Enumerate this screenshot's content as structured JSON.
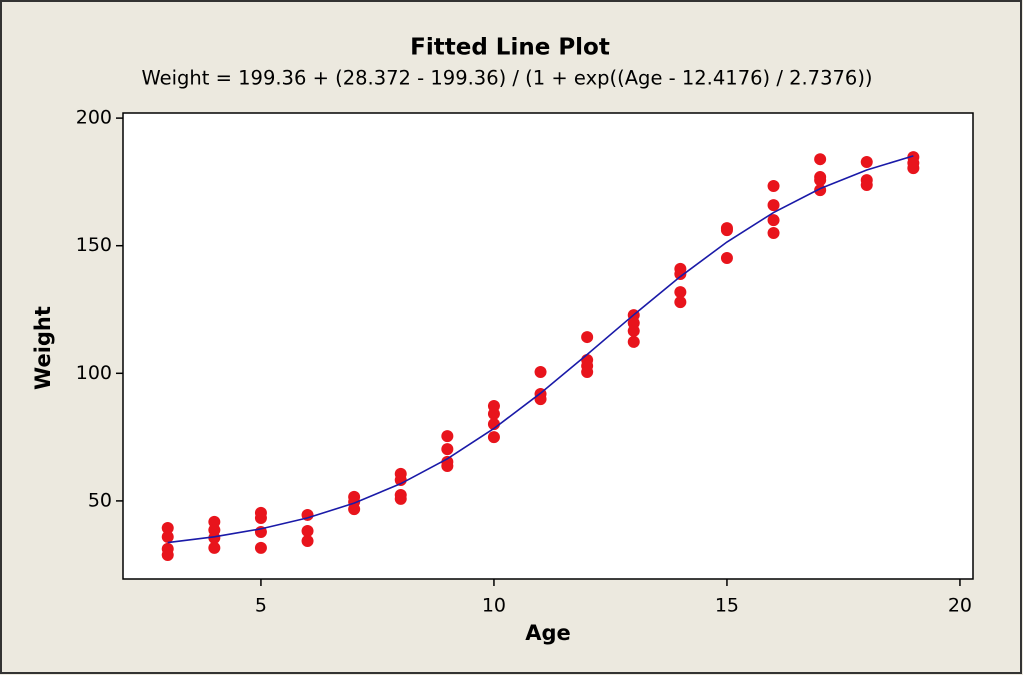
{
  "chart_data": {
    "type": "scatter",
    "title": "Fitted Line Plot",
    "subtitle": "Weight = 199.36 + (28.372 - 199.36) / (1 + exp((Age - 12.4176) / 2.7376))",
    "x_label": "Age",
    "y_label": "Weight",
    "xlim": [
      2.04,
      20.28
    ],
    "ylim": [
      19.4,
      202
    ],
    "xticks": [
      5,
      10,
      15,
      20
    ],
    "yticks": [
      50,
      100,
      150,
      200
    ],
    "points": {
      "color": "#e8141c",
      "x": [
        3,
        3,
        3,
        3,
        4,
        4,
        4,
        4,
        5,
        5,
        5,
        5,
        6,
        6,
        6,
        7,
        7,
        7,
        8,
        8,
        8,
        8,
        9,
        9,
        9,
        9,
        10,
        10,
        10,
        10,
        11,
        11,
        11,
        12,
        12,
        12,
        12,
        13,
        13,
        13,
        13,
        14,
        14,
        14,
        14,
        15,
        15,
        15,
        16,
        16,
        16,
        16,
        17,
        17,
        17,
        17,
        18,
        18,
        18,
        19,
        19,
        19
      ],
      "y": [
        39.4,
        35.9,
        31.2,
        28.8,
        41.8,
        38.6,
        35.5,
        31.6,
        45.3,
        43.3,
        37.8,
        31.6,
        44.5,
        38.2,
        34.3,
        51.6,
        49.6,
        46.8,
        60.6,
        58.2,
        52.3,
        50.8,
        75.4,
        70.3,
        65.3,
        63.7,
        87.2,
        84.1,
        80.1,
        75.0,
        100.5,
        91.9,
        89.9,
        114.2,
        105.2,
        102.9,
        100.5,
        122.8,
        119.7,
        116.6,
        112.3,
        140.9,
        138.9,
        131.8,
        127.9,
        156.9,
        156.1,
        145.2,
        173.4,
        165.9,
        160.0,
        155.0,
        183.9,
        176.9,
        175.7,
        171.8,
        182.8,
        175.7,
        173.8,
        184.7,
        182.4,
        180.4
      ]
    },
    "fit": {
      "color": "#1a1aa8",
      "x": [
        3,
        4,
        5,
        6,
        7,
        8,
        9,
        10,
        11,
        12,
        13,
        14,
        15,
        16,
        17,
        18,
        19
      ],
      "y": [
        33.69,
        35.92,
        39.05,
        43.34,
        49.13,
        56.76,
        66.5,
        78.39,
        92.21,
        107.36,
        122.92,
        137.91,
        151.44,
        162.99,
        172.36,
        179.67,
        185.19
      ]
    }
  }
}
